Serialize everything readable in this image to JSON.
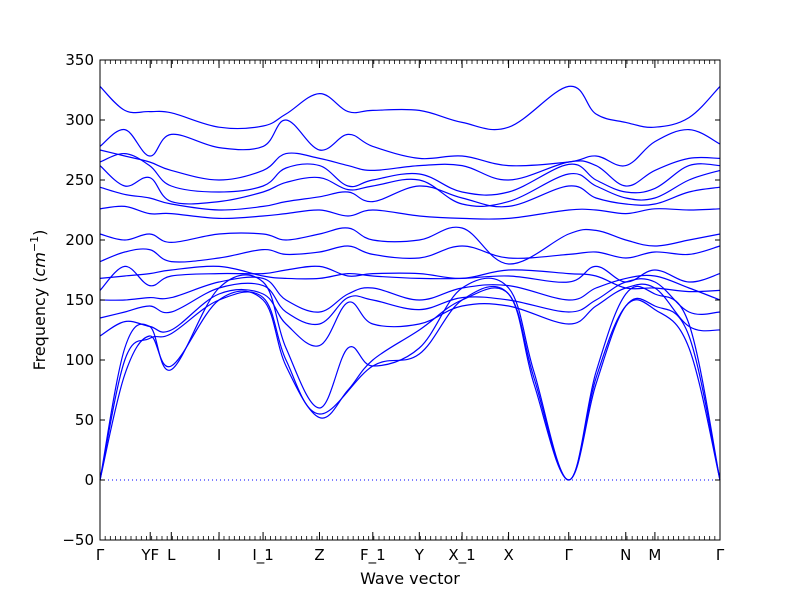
{
  "chart_data": {
    "type": "line",
    "xlabel": "Wave vector",
    "ylabel_text": "Frequency (",
    "ylabel_unit": "cm",
    "ylabel_sup": "−1",
    "ylabel_close": ")",
    "ylim": [
      -50,
      350
    ],
    "yticks": [
      -50,
      0,
      50,
      100,
      150,
      200,
      250,
      300,
      350
    ],
    "ytick_labels": [
      "−50",
      "0",
      "50",
      "100",
      "150",
      "200",
      "250",
      "300",
      "350"
    ],
    "xlim": [
      0,
      1
    ],
    "special_points": [
      {
        "label": "Γ",
        "x": 0.0
      },
      {
        "label": "YF",
        "x": 0.081
      },
      {
        "label": "L",
        "x": 0.115
      },
      {
        "label": "I",
        "x": 0.192
      },
      {
        "label": "I_1",
        "x": 0.263
      },
      {
        "label": "Z",
        "x": 0.354
      },
      {
        "label": "F_1",
        "x": 0.44
      },
      {
        "label": "Y",
        "x": 0.515
      },
      {
        "label": "X_1",
        "x": 0.584
      },
      {
        "label": "X",
        "x": 0.659
      },
      {
        "label": "Γ",
        "x": 0.756
      },
      {
        "label": "N",
        "x": 0.848
      },
      {
        "label": "M",
        "x": 0.895
      },
      {
        "label": "Γ",
        "x": 1.0
      }
    ],
    "zero_line": {
      "y": 0,
      "style": "dotted"
    },
    "grid": false,
    "series_color": "#0000ff",
    "series": [
      {
        "x": [
          0,
          0.04,
          0.08,
          0.115,
          0.192,
          0.263,
          0.3,
          0.354,
          0.44,
          0.515,
          0.584,
          0.659,
          0.7,
          0.756,
          0.8,
          0.848,
          0.895,
          0.95,
          1.0
        ],
        "values": [
          0,
          100,
          118,
          122,
          150,
          152,
          100,
          55,
          95,
          105,
          150,
          155,
          80,
          0,
          80,
          145,
          145,
          120,
          0
        ]
      },
      {
        "x": [
          0,
          0.04,
          0.08,
          0.115,
          0.192,
          0.263,
          0.3,
          0.354,
          0.4,
          0.44,
          0.515,
          0.584,
          0.659,
          0.7,
          0.756,
          0.8,
          0.848,
          0.895,
          0.95,
          1.0
        ],
        "values": [
          0,
          88,
          120,
          95,
          150,
          150,
          95,
          52,
          75,
          100,
          125,
          150,
          155,
          85,
          0,
          85,
          145,
          142,
          110,
          0
        ]
      },
      {
        "x": [
          0,
          0.04,
          0.08,
          0.115,
          0.192,
          0.263,
          0.3,
          0.354,
          0.4,
          0.44,
          0.515,
          0.584,
          0.659,
          0.7,
          0.756,
          0.8,
          0.848,
          0.895,
          0.95,
          1.0
        ],
        "values": [
          0,
          110,
          128,
          92,
          160,
          165,
          110,
          60,
          110,
          95,
          110,
          160,
          160,
          90,
          0,
          90,
          155,
          155,
          130,
          0
        ]
      },
      {
        "x": [
          0,
          0.04,
          0.08,
          0.115,
          0.192,
          0.263,
          0.3,
          0.354,
          0.4,
          0.44,
          0.515,
          0.584,
          0.659,
          0.756,
          0.8,
          0.848,
          0.895,
          0.95,
          1.0
        ],
        "values": [
          120,
          132,
          128,
          125,
          155,
          155,
          130,
          112,
          148,
          130,
          130,
          145,
          145,
          130,
          145,
          160,
          160,
          128,
          125
        ]
      },
      {
        "x": [
          0,
          0.04,
          0.08,
          0.115,
          0.192,
          0.263,
          0.3,
          0.354,
          0.4,
          0.44,
          0.515,
          0.584,
          0.659,
          0.756,
          0.8,
          0.848,
          0.895,
          0.95,
          1.0
        ],
        "values": [
          135,
          140,
          145,
          140,
          160,
          162,
          140,
          130,
          152,
          150,
          142,
          152,
          150,
          140,
          150,
          165,
          165,
          140,
          140
        ]
      },
      {
        "x": [
          0,
          0.04,
          0.08,
          0.115,
          0.192,
          0.263,
          0.3,
          0.354,
          0.4,
          0.44,
          0.515,
          0.584,
          0.659,
          0.756,
          0.8,
          0.848,
          0.895,
          0.95,
          1.0
        ],
        "values": [
          150,
          150,
          152,
          152,
          165,
          168,
          150,
          140,
          155,
          160,
          150,
          160,
          162,
          150,
          160,
          168,
          170,
          160,
          150
        ]
      },
      {
        "x": [
          0,
          0.04,
          0.08,
          0.115,
          0.192,
          0.263,
          0.3,
          0.354,
          0.4,
          0.44,
          0.515,
          0.584,
          0.659,
          0.756,
          0.8,
          0.848,
          0.895,
          0.95,
          1.0
        ],
        "values": [
          158,
          178,
          162,
          170,
          172,
          172,
          175,
          178,
          170,
          172,
          172,
          168,
          175,
          172,
          170,
          160,
          160,
          157,
          158
        ]
      },
      {
        "x": [
          0,
          0.04,
          0.08,
          0.115,
          0.192,
          0.263,
          0.3,
          0.354,
          0.4,
          0.44,
          0.515,
          0.584,
          0.659,
          0.756,
          0.8,
          0.848,
          0.895,
          0.95,
          1.0
        ],
        "values": [
          168,
          170,
          172,
          175,
          178,
          170,
          168,
          168,
          172,
          170,
          168,
          168,
          170,
          165,
          178,
          165,
          175,
          165,
          172
        ]
      },
      {
        "x": [
          0,
          0.04,
          0.08,
          0.115,
          0.192,
          0.263,
          0.3,
          0.354,
          0.4,
          0.44,
          0.515,
          0.584,
          0.659,
          0.756,
          0.8,
          0.848,
          0.895,
          0.95,
          1.0
        ],
        "values": [
          182,
          190,
          192,
          182,
          185,
          192,
          188,
          190,
          195,
          188,
          185,
          195,
          185,
          188,
          190,
          185,
          190,
          188,
          195
        ]
      },
      {
        "x": [
          0,
          0.04,
          0.08,
          0.115,
          0.192,
          0.263,
          0.3,
          0.354,
          0.4,
          0.44,
          0.515,
          0.584,
          0.659,
          0.756,
          0.8,
          0.848,
          0.895,
          0.95,
          1.0
        ],
        "values": [
          205,
          200,
          205,
          198,
          205,
          205,
          200,
          205,
          210,
          200,
          200,
          210,
          180,
          205,
          208,
          200,
          195,
          200,
          205
        ]
      },
      {
        "x": [
          0,
          0.04,
          0.08,
          0.115,
          0.192,
          0.263,
          0.3,
          0.354,
          0.4,
          0.44,
          0.515,
          0.584,
          0.659,
          0.756,
          0.8,
          0.848,
          0.895,
          0.95,
          1.0
        ],
        "values": [
          226,
          228,
          222,
          222,
          218,
          220,
          222,
          225,
          220,
          225,
          220,
          218,
          218,
          225,
          225,
          222,
          226,
          225,
          226
        ]
      },
      {
        "x": [
          0,
          0.04,
          0.08,
          0.115,
          0.192,
          0.263,
          0.3,
          0.354,
          0.4,
          0.44,
          0.515,
          0.584,
          0.659,
          0.756,
          0.8,
          0.848,
          0.895,
          0.95,
          1.0
        ],
        "values": [
          244,
          238,
          235,
          230,
          225,
          228,
          232,
          236,
          240,
          232,
          245,
          235,
          228,
          245,
          235,
          230,
          230,
          240,
          244
        ]
      },
      {
        "x": [
          0,
          0.04,
          0.08,
          0.115,
          0.192,
          0.263,
          0.3,
          0.354,
          0.4,
          0.44,
          0.515,
          0.584,
          0.659,
          0.756,
          0.8,
          0.848,
          0.895,
          0.95,
          1.0
        ],
        "values": [
          262,
          245,
          252,
          232,
          232,
          240,
          248,
          252,
          242,
          245,
          250,
          230,
          232,
          255,
          245,
          235,
          235,
          250,
          258
        ]
      },
      {
        "x": [
          0,
          0.04,
          0.08,
          0.115,
          0.192,
          0.263,
          0.3,
          0.354,
          0.4,
          0.44,
          0.515,
          0.584,
          0.659,
          0.756,
          0.8,
          0.848,
          0.895,
          0.95,
          1.0
        ],
        "values": [
          265,
          272,
          262,
          245,
          240,
          245,
          260,
          262,
          245,
          250,
          255,
          240,
          240,
          263,
          250,
          240,
          243,
          262,
          262
        ]
      },
      {
        "x": [
          0,
          0.04,
          0.08,
          0.115,
          0.192,
          0.263,
          0.3,
          0.354,
          0.4,
          0.44,
          0.515,
          0.584,
          0.659,
          0.756,
          0.8,
          0.848,
          0.895,
          0.95,
          1.0
        ],
        "values": [
          275,
          270,
          265,
          258,
          250,
          258,
          272,
          268,
          262,
          258,
          262,
          262,
          250,
          265,
          262,
          245,
          258,
          268,
          268
        ]
      },
      {
        "x": [
          0,
          0.04,
          0.08,
          0.115,
          0.192,
          0.263,
          0.3,
          0.354,
          0.4,
          0.44,
          0.515,
          0.584,
          0.659,
          0.756,
          0.8,
          0.848,
          0.895,
          0.95,
          1.0
        ],
        "values": [
          278,
          292,
          270,
          288,
          277,
          278,
          300,
          275,
          288,
          278,
          268,
          270,
          262,
          265,
          270,
          262,
          282,
          292,
          280
        ]
      },
      {
        "x": [
          0,
          0.04,
          0.08,
          0.115,
          0.192,
          0.263,
          0.3,
          0.354,
          0.4,
          0.44,
          0.515,
          0.584,
          0.659,
          0.756,
          0.8,
          0.848,
          0.895,
          0.95,
          1.0
        ],
        "values": [
          328,
          308,
          307,
          306,
          294,
          295,
          305,
          322,
          307,
          308,
          308,
          298,
          294,
          328,
          305,
          298,
          294,
          302,
          328
        ]
      }
    ]
  }
}
